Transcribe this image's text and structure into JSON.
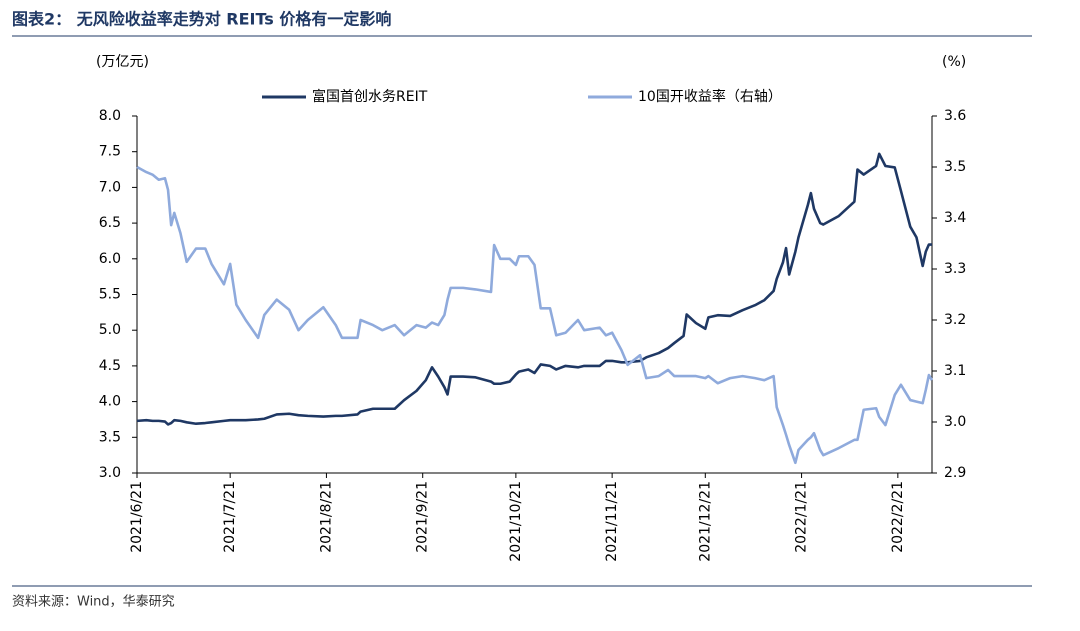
{
  "chart_data": {
    "type": "line",
    "title": "图表2：  无风险收益率走势对 REITs 价格有一定影响",
    "y_axis_label": "(万亿元)",
    "y2_axis_label": "(%)",
    "source": "资料来源：Wind，华泰研究",
    "x": [
      "2021/6/21",
      "2021/6/24",
      "2021/6/26",
      "2021/6/28",
      "2021/6/30",
      "2021/7/1",
      "2021/7/2",
      "2021/7/3",
      "2021/7/5",
      "2021/7/7",
      "2021/7/10",
      "2021/7/13",
      "2021/7/15",
      "2021/7/19",
      "2021/7/21",
      "2021/7/23",
      "2021/7/26",
      "2021/7/30",
      "2021/8/1",
      "2021/8/5",
      "2021/8/9",
      "2021/8/12",
      "2021/8/15",
      "2021/8/20",
      "2021/8/24",
      "2021/8/26",
      "2021/8/31",
      "2021/9/1",
      "2021/9/5",
      "2021/9/8",
      "2021/9/12",
      "2021/9/15",
      "2021/9/19",
      "2021/9/22",
      "2021/9/24",
      "2021/9/26",
      "2021/9/28",
      "2021/9/29",
      "2021/9/30",
      "2021/10/4",
      "2021/10/8",
      "2021/10/13",
      "2021/10/14",
      "2021/10/16",
      "2021/10/19",
      "2021/10/21",
      "2021/10/22",
      "2021/10/25",
      "2021/10/27",
      "2021/10/29",
      "2021/11/1",
      "2021/11/3",
      "2021/11/6",
      "2021/11/10",
      "2021/11/12",
      "2021/11/17",
      "2021/11/19",
      "2021/11/21",
      "2021/11/24",
      "2021/11/26",
      "2021/11/30",
      "2021/12/2",
      "2021/12/6",
      "2021/12/9",
      "2021/12/11",
      "2021/12/14",
      "2021/12/15",
      "2021/12/18",
      "2021/12/21",
      "2021/12/22",
      "2021/12/25",
      "2021/12/29",
      "2022/1/2",
      "2022/1/6",
      "2022/1/9",
      "2022/1/12",
      "2022/1/13",
      "2022/1/15",
      "2022/1/16",
      "2022/1/17",
      "2022/1/19",
      "2022/1/20",
      "2022/1/23",
      "2022/1/24",
      "2022/1/25",
      "2022/1/27",
      "2022/1/28",
      "2022/2/2",
      "2022/2/7",
      "2022/2/8",
      "2022/2/10",
      "2022/2/14",
      "2022/2/15",
      "2022/2/17",
      "2022/2/20",
      "2022/2/22",
      "2022/2/25",
      "2022/2/27",
      "2022/3/1",
      "2022/3/2",
      "2022/3/3",
      "2022/3/4"
    ],
    "series": [
      {
        "name": "富国首创水务REIT",
        "color": "#1f3864",
        "axis": "y",
        "values": [
          3.73,
          3.74,
          3.73,
          3.73,
          3.72,
          3.68,
          3.7,
          3.74,
          3.73,
          3.71,
          3.69,
          3.7,
          3.71,
          3.73,
          3.74,
          3.74,
          3.74,
          3.75,
          3.76,
          3.82,
          3.83,
          3.81,
          3.8,
          3.79,
          3.8,
          3.8,
          3.82,
          3.86,
          3.9,
          3.9,
          3.9,
          4.02,
          4.15,
          4.3,
          4.48,
          4.35,
          4.2,
          4.1,
          4.35,
          4.35,
          4.34,
          4.28,
          4.25,
          4.25,
          4.28,
          4.38,
          4.42,
          4.45,
          4.4,
          4.52,
          4.5,
          4.45,
          4.5,
          4.48,
          4.5,
          4.5,
          4.57,
          4.57,
          4.55,
          4.55,
          4.57,
          4.62,
          4.68,
          4.75,
          4.82,
          4.92,
          5.22,
          5.1,
          5.02,
          5.18,
          5.21,
          5.2,
          5.28,
          5.35,
          5.42,
          5.55,
          5.72,
          5.95,
          6.15,
          5.78,
          6.1,
          6.3,
          6.75,
          6.92,
          6.7,
          6.5,
          6.48,
          6.6,
          6.8,
          7.25,
          7.18,
          7.3,
          7.47,
          7.3,
          7.28,
          6.95,
          6.45,
          6.3,
          5.9,
          6.1,
          6.2,
          6.2
        ]
      },
      {
        "name": "10国开收益率（右轴）",
        "color": "#8faadc",
        "axis": "y2",
        "values": [
          3.5,
          3.49,
          3.485,
          3.475,
          3.478,
          3.455,
          3.386,
          3.41,
          3.37,
          3.314,
          3.34,
          3.34,
          3.31,
          3.27,
          3.31,
          3.23,
          3.2,
          3.165,
          3.21,
          3.24,
          3.22,
          3.18,
          3.2,
          3.225,
          3.19,
          3.165,
          3.165,
          3.2,
          3.19,
          3.18,
          3.19,
          3.17,
          3.19,
          3.185,
          3.195,
          3.19,
          3.21,
          3.24,
          3.263,
          3.263,
          3.26,
          3.255,
          3.347,
          3.32,
          3.32,
          3.308,
          3.325,
          3.325,
          3.308,
          3.223,
          3.223,
          3.17,
          3.175,
          3.2,
          3.18,
          3.185,
          3.17,
          3.175,
          3.141,
          3.112,
          3.131,
          3.086,
          3.09,
          3.102,
          3.09,
          3.09,
          3.09,
          3.09,
          3.086,
          3.09,
          3.076,
          3.086,
          3.09,
          3.086,
          3.082,
          3.09,
          3.029,
          2.994,
          2.975,
          2.955,
          2.92,
          2.945,
          2.965,
          2.97,
          2.978,
          2.945,
          2.935,
          2.949,
          2.965,
          2.965,
          3.024,
          3.027,
          3.01,
          2.994,
          3.053,
          3.073,
          3.043,
          3.04,
          3.037,
          3.063,
          3.092,
          3.082
        ]
      }
    ],
    "xlim": [
      "2021/6/21",
      "2022/3/4"
    ],
    "xticks": [
      "2021/6/21",
      "2021/7/21",
      "2021/8/21",
      "2021/9/21",
      "2021/10/21",
      "2021/11/21",
      "2021/12/21",
      "2022/1/21",
      "2022/2/21"
    ],
    "ylim": [
      3,
      8
    ],
    "yticks": [
      {
        "value": 3,
        "label": "3.0"
      },
      {
        "value": 3.5,
        "label": "3.5"
      },
      {
        "value": 4,
        "label": "4.0"
      },
      {
        "value": 4.5,
        "label": "4.5"
      },
      {
        "value": 5,
        "label": "5.0"
      },
      {
        "value": 5.5,
        "label": "5.5"
      },
      {
        "value": 6,
        "label": "6.0"
      },
      {
        "value": 6.5,
        "label": "6.5"
      },
      {
        "value": 7,
        "label": "7.0"
      },
      {
        "value": 7.5,
        "label": "7.5"
      },
      {
        "value": 8,
        "label": "8.0"
      }
    ],
    "y2lim": [
      2.9,
      3.6
    ],
    "y2ticks": [
      2.9,
      {
        "value": 3,
        "label": "3.0"
      },
      3.1,
      3.2,
      3.3,
      3.4,
      3.5,
      3.6
    ],
    "grid": false
  }
}
